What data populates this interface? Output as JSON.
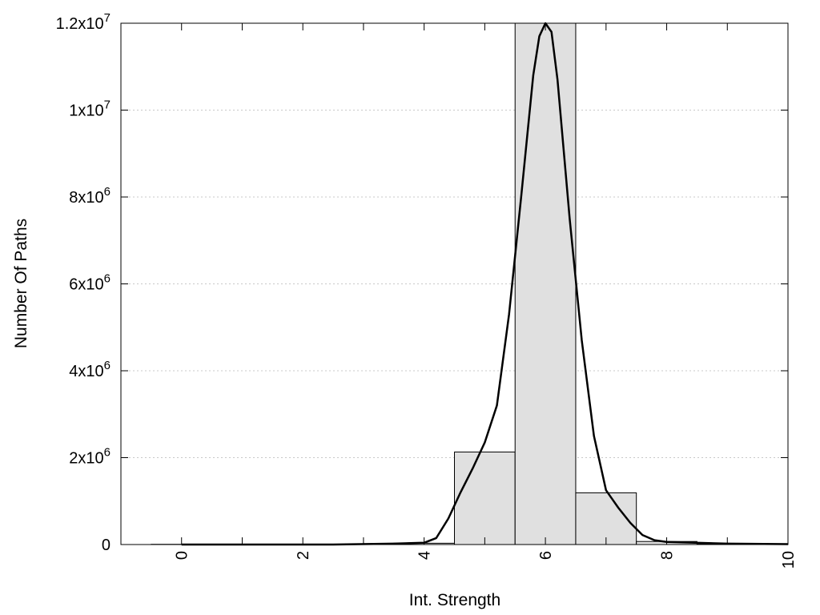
{
  "chart_data": {
    "type": "bar",
    "title": "",
    "xlabel": "Int. Strength",
    "ylabel": "Number Of Paths",
    "xlim": [
      -1,
      10
    ],
    "ylim": [
      0,
      12000000
    ],
    "grid": true,
    "x_ticks": [
      {
        "value": 0,
        "label": "0"
      },
      {
        "value": 2,
        "label": "2"
      },
      {
        "value": 4,
        "label": "4"
      },
      {
        "value": 6,
        "label": "6"
      },
      {
        "value": 8,
        "label": "8"
      },
      {
        "value": 10,
        "label": "10"
      }
    ],
    "y_ticks": [
      {
        "value": 0,
        "mantissa": "0",
        "exponent": ""
      },
      {
        "value": 2000000,
        "mantissa": "2x10",
        "exponent": "6"
      },
      {
        "value": 4000000,
        "mantissa": "4x10",
        "exponent": "6"
      },
      {
        "value": 6000000,
        "mantissa": "6x10",
        "exponent": "6"
      },
      {
        "value": 8000000,
        "mantissa": "8x10",
        "exponent": "6"
      },
      {
        "value": 10000000,
        "mantissa": "1x10",
        "exponent": "7"
      },
      {
        "value": 12000000,
        "mantissa": "1.2x10",
        "exponent": "7"
      }
    ],
    "bars": {
      "x": [
        0,
        1,
        2,
        3,
        4,
        5,
        6,
        7,
        8,
        9,
        10
      ],
      "values": [
        5000,
        5000,
        5000,
        5000,
        30000,
        2130000,
        12000000,
        1190000,
        70000,
        10000,
        5000
      ],
      "width": 1,
      "fill": "#e0e0e0",
      "stroke": "#000000"
    },
    "curve": {
      "stroke": "#000000",
      "x": [
        0,
        2.5,
        3.5,
        4.0,
        4.2,
        4.4,
        4.6,
        4.8,
        5.0,
        5.2,
        5.4,
        5.6,
        5.8,
        5.9,
        6.0,
        6.1,
        6.2,
        6.4,
        6.6,
        6.8,
        7.0,
        7.2,
        7.4,
        7.6,
        7.8,
        8.0,
        9.0,
        10.0
      ],
      "y": [
        0,
        0,
        20000,
        40000,
        150000,
        600000,
        1200000,
        1750000,
        2350000,
        3200000,
        5300000,
        8000000,
        10800000,
        11700000,
        12000000,
        11800000,
        10700000,
        7500000,
        4700000,
        2500000,
        1250000,
        850000,
        500000,
        220000,
        100000,
        60000,
        20000,
        10000
      ]
    }
  }
}
